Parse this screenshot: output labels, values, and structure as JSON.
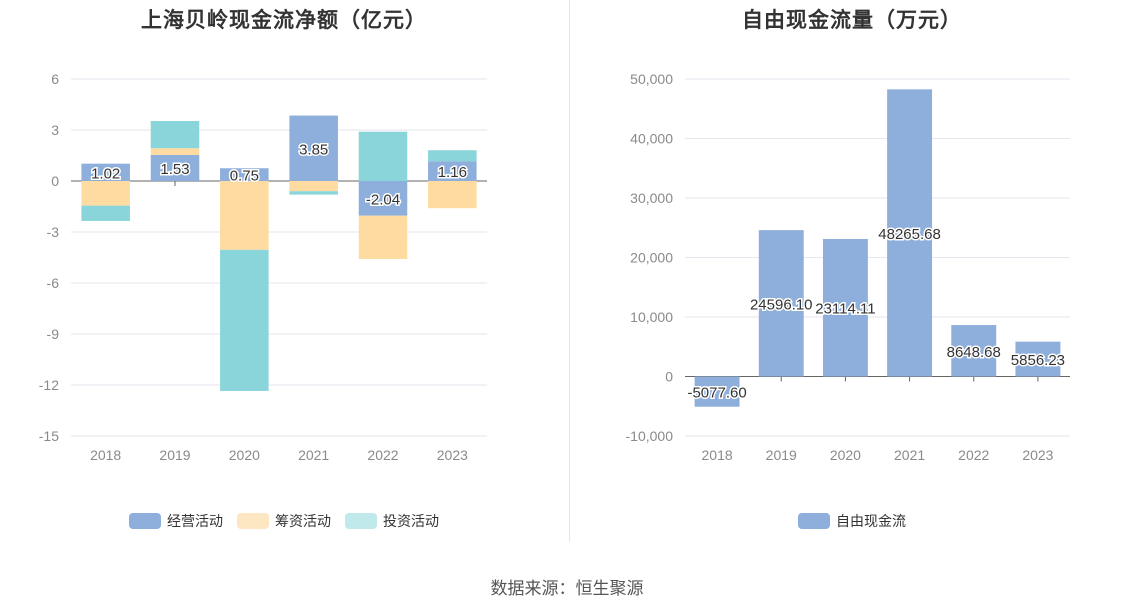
{
  "source_label": "数据来源：恒生聚源",
  "chart_data": [
    {
      "type": "bar",
      "stacked": true,
      "title": "上海贝岭现金流净额（亿元）",
      "categories": [
        "2018",
        "2019",
        "2020",
        "2021",
        "2022",
        "2023"
      ],
      "ylim": [
        -15,
        6
      ],
      "yticks": [
        "6",
        "3",
        "0",
        "-3",
        "-6",
        "-9",
        "-12",
        "-15"
      ],
      "grid": true,
      "legend_position": "bottom",
      "series": [
        {
          "name": "经营活动",
          "color": "#8eaedc",
          "values": [
            1.02,
            1.53,
            0.75,
            3.85,
            -2.04,
            1.16
          ],
          "labels": [
            "1.02",
            "1.53",
            "0.75",
            "3.85",
            "-2.04",
            "1.16"
          ]
        },
        {
          "name": "筹资活动",
          "color": "#fedba1",
          "values": [
            -1.45,
            0.4,
            -4.05,
            -0.6,
            -2.55,
            -1.6
          ]
        },
        {
          "name": "投资活动",
          "color": "#89d5d9",
          "values": [
            -0.9,
            1.6,
            -8.3,
            -0.2,
            2.9,
            0.65
          ]
        }
      ]
    },
    {
      "type": "bar",
      "title": "自由现金流量（万元）",
      "categories": [
        "2018",
        "2019",
        "2020",
        "2021",
        "2022",
        "2023"
      ],
      "ylim": [
        -10000,
        50000
      ],
      "yticks": [
        "50,000",
        "40,000",
        "30,000",
        "20,000",
        "10,000",
        "0",
        "-10,000"
      ],
      "grid": true,
      "legend_position": "bottom",
      "series": [
        {
          "name": "自由现金流",
          "color": "#8eaedc",
          "values": [
            -5077.6,
            24596.1,
            23114.11,
            48265.68,
            8648.68,
            5856.23
          ],
          "labels": [
            "-5077.60",
            "24596.10",
            "23114.11",
            "48265.68",
            "8648.68",
            "5856.23"
          ]
        }
      ]
    }
  ]
}
